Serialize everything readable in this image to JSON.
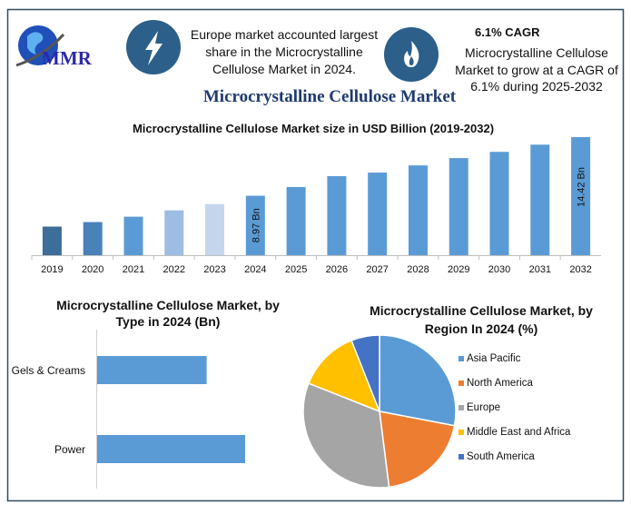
{
  "header": {
    "logo_text": "MMR",
    "highlight_1": [
      "Europe market accounted largest",
      "share in the Microcrystalline",
      "Cellulose Market in 2024."
    ],
    "highlight_2_title": "6.1% CAGR",
    "highlight_2": [
      "Microcrystalline Cellulose",
      "Market to grow at a CAGR of",
      "6.1% during 2025-2032"
    ],
    "icons": [
      "lightning-icon",
      "flame-icon"
    ],
    "main_title": "Microcrystalline Cellulose Market"
  },
  "colors": {
    "frame": "#2f4b5e",
    "icon_circle": "#2c5f8a",
    "title": "#1f3a6e",
    "logo": "#2a2aa8",
    "bar": "#5b9bd5"
  },
  "chart_data": [
    {
      "type": "bar",
      "title": "Microcrystalline Cellulose Market size in USD Billion (2019-2032)",
      "categories": [
        "2019",
        "2020",
        "2021",
        "2022",
        "2023",
        "2024",
        "2025",
        "2026",
        "2027",
        "2028",
        "2029",
        "2030",
        "2031",
        "2032"
      ],
      "values": [
        6.1,
        6.52,
        7.02,
        7.61,
        8.19,
        8.97,
        9.78,
        10.79,
        11.12,
        11.79,
        12.47,
        13.05,
        13.72,
        14.42
      ],
      "bar_colors": [
        "#3d6e99",
        "#4a82b8",
        "#5b9bd5",
        "#9dbde2",
        "#c5d6ec",
        "#5b9bd5",
        "#5b9bd5",
        "#5b9bd5",
        "#5b9bd5",
        "#5b9bd5",
        "#5b9bd5",
        "#5b9bd5",
        "#5b9bd5",
        "#5b9bd5"
      ],
      "data_labels": {
        "2024": "8.97 Bn",
        "2032": "14.42 Bn"
      },
      "ylim": [
        3.44,
        15
      ],
      "grid": false
    },
    {
      "type": "bar",
      "orientation": "horizontal",
      "title": [
        "Microcrystalline Cellulose Market, by",
        "Type in 2024 (Bn)"
      ],
      "categories": [
        "Gels & Creams",
        "Power"
      ],
      "values": [
        0.74,
        1.0
      ],
      "color": "#5b9bd5",
      "xlim": [
        0,
        1.05
      ],
      "grid": false
    },
    {
      "type": "pie",
      "title": [
        "Microcrystalline Cellulose Market, by",
        "Region In 2024 (%)"
      ],
      "labels": [
        "Asia Pacific",
        "North America",
        "Europe",
        "Middle East and Africa",
        "South America"
      ],
      "values": [
        28,
        20,
        33,
        13,
        6
      ],
      "colors": [
        "#5b9bd5",
        "#ed7d31",
        "#a5a5a5",
        "#ffc000",
        "#4472c4"
      ],
      "legend": "right"
    }
  ]
}
